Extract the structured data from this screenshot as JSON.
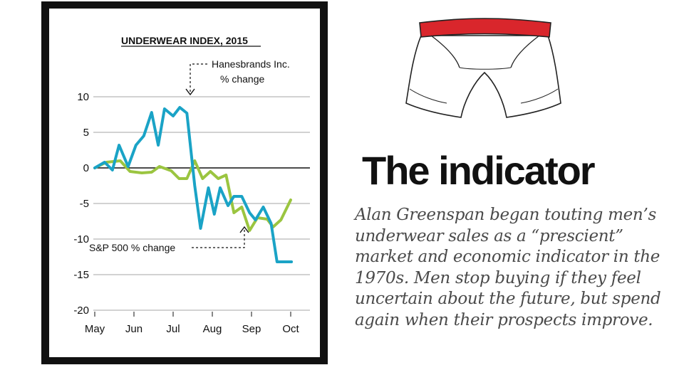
{
  "chart_data": {
    "type": "line",
    "title": "UNDERWEAR INDEX, 2015",
    "xlabel": "",
    "ylabel": "",
    "ylim": [
      -20,
      10
    ],
    "y_ticks": [
      "10",
      "5",
      "0",
      "-5",
      "-10",
      "-15",
      "-20"
    ],
    "x_ticks": [
      "May",
      "Jun",
      "Jul",
      "Aug",
      "Sep",
      "Oct"
    ],
    "series": [
      {
        "name": "Hanesbrands Inc. % change",
        "color": "#1aa3c6",
        "x": [
          0,
          0.25,
          0.45,
          0.62,
          0.85,
          1.05,
          1.25,
          1.45,
          1.62,
          1.78,
          2.0,
          2.17,
          2.35,
          2.55,
          2.7,
          2.9,
          3.05,
          3.2,
          3.4,
          3.55,
          3.75,
          3.95,
          4.1,
          4.3,
          4.5,
          4.65,
          4.85,
          5.02
        ],
        "y": [
          0,
          0.8,
          -0.3,
          3.2,
          0.2,
          3.2,
          4.5,
          7.8,
          3.2,
          8.3,
          7.3,
          8.5,
          7.7,
          -2.5,
          -8.5,
          -2.8,
          -6.5,
          -2.8,
          -5.3,
          -4,
          -4,
          -6.3,
          -7.3,
          -5.5,
          -7.8,
          -13.2,
          -13.2,
          -13.2
        ]
      },
      {
        "name": "S&P 500 % change",
        "color": "#9bc540",
        "x": [
          0,
          0.3,
          0.65,
          0.9,
          1.2,
          1.45,
          1.65,
          1.95,
          2.15,
          2.35,
          2.55,
          2.75,
          2.95,
          3.15,
          3.35,
          3.55,
          3.75,
          3.95,
          4.15,
          4.4,
          4.55,
          4.75,
          5.0
        ],
        "y": [
          0,
          0.8,
          1.0,
          -0.5,
          -0.7,
          -0.6,
          0.2,
          -0.4,
          -1.5,
          -1.5,
          1.0,
          -1.5,
          -0.5,
          -1.5,
          -1.0,
          -6.3,
          -5.5,
          -8.8,
          -7.0,
          -7.2,
          -8.3,
          -7.3,
          -4.5
        ]
      }
    ],
    "annotations": [
      {
        "label": "Hanesbrands Inc.",
        "label2": "% change"
      },
      {
        "label": "S&P 500 % change"
      }
    ],
    "grid": true,
    "legend": "none"
  },
  "panel": {
    "headline": "The indicator",
    "body": "Alan Greenspan began touting men’s underwear sales as a “prescient” market and economic indicator in the 1970s. Men stop buying if they feel uncertain about the future, but spend again when their prospects improve."
  }
}
